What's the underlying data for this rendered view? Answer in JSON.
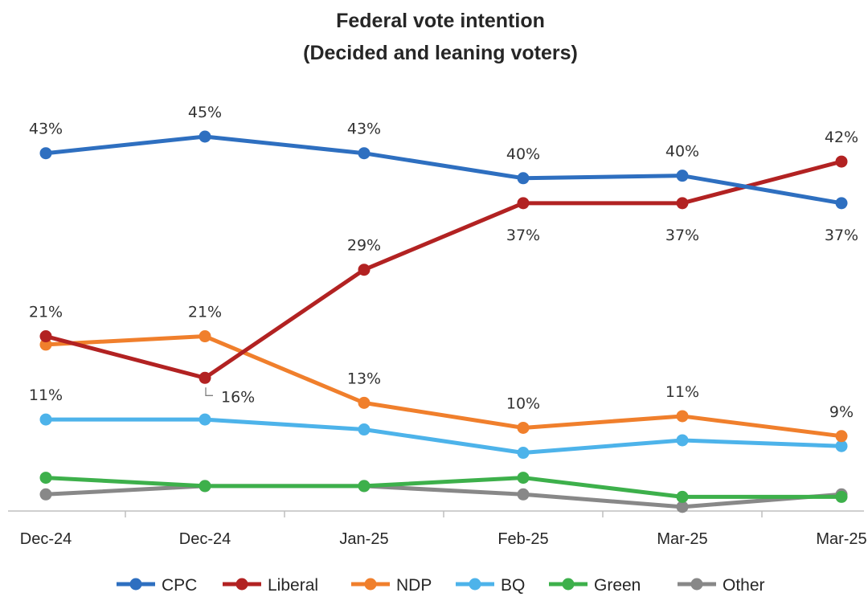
{
  "chart_data": {
    "type": "line",
    "title": "Federal vote intention",
    "subtitle": "(Decided and leaning voters)",
    "categories": [
      "Dec-24",
      "Dec-24",
      "Jan-25",
      "Feb-25",
      "Mar-25",
      "Mar-25"
    ],
    "ylim": [
      0,
      47
    ],
    "grid": false,
    "legend_position": "bottom",
    "series": [
      {
        "name": "CPC",
        "color": "#2E6FC0",
        "values": [
          43,
          45,
          43,
          40,
          40.3,
          37
        ]
      },
      {
        "name": "Liberal",
        "color": "#B22222",
        "values": [
          21,
          16,
          29,
          37,
          37,
          42
        ]
      },
      {
        "name": "NDP",
        "color": "#F07F2C",
        "values": [
          20,
          21,
          13,
          10,
          11.4,
          9
        ]
      },
      {
        "name": "BQ",
        "color": "#4DB3EA",
        "values": [
          11,
          11,
          9.8,
          7,
          8.5,
          7.8
        ]
      },
      {
        "name": "Green",
        "color": "#3DB04B",
        "values": [
          4,
          3,
          3,
          4,
          1.7,
          1.7
        ]
      },
      {
        "name": "Other",
        "color": "#888888",
        "values": [
          2,
          3,
          3,
          2,
          0.5,
          2
        ]
      }
    ],
    "data_labels": [
      {
        "series": "CPC",
        "index": 0,
        "text": "43%",
        "place": "above"
      },
      {
        "series": "CPC",
        "index": 1,
        "text": "45%",
        "place": "above"
      },
      {
        "series": "CPC",
        "index": 2,
        "text": "43%",
        "place": "above"
      },
      {
        "series": "CPC",
        "index": 3,
        "text": "40%",
        "place": "above"
      },
      {
        "series": "CPC",
        "index": 4,
        "text": "40%",
        "place": "above"
      },
      {
        "series": "CPC",
        "index": 5,
        "text": "37%",
        "place": "below"
      },
      {
        "series": "Liberal",
        "index": 0,
        "text": "21%",
        "place": "above"
      },
      {
        "series": "Liberal",
        "index": 1,
        "text": "16%",
        "place": "callout"
      },
      {
        "series": "Liberal",
        "index": 2,
        "text": "29%",
        "place": "above"
      },
      {
        "series": "Liberal",
        "index": 3,
        "text": "37%",
        "place": "below"
      },
      {
        "series": "Liberal",
        "index": 4,
        "text": "37%",
        "place": "below"
      },
      {
        "series": "Liberal",
        "index": 5,
        "text": "42%",
        "place": "above"
      },
      {
        "series": "NDP",
        "index": 1,
        "text": "21%",
        "place": "above"
      },
      {
        "series": "NDP",
        "index": 2,
        "text": "13%",
        "place": "above"
      },
      {
        "series": "NDP",
        "index": 3,
        "text": "10%",
        "place": "above"
      },
      {
        "series": "NDP",
        "index": 4,
        "text": "11%",
        "place": "above"
      },
      {
        "series": "NDP",
        "index": 5,
        "text": "9%",
        "place": "above"
      },
      {
        "series": "BQ",
        "index": 0,
        "text": "11%",
        "place": "above"
      }
    ]
  }
}
